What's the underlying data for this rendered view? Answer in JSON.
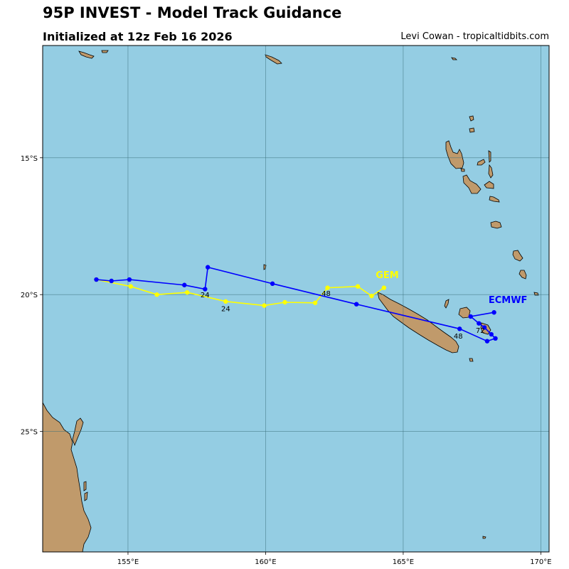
{
  "header": {
    "title": "95P INVEST - Model Track Guidance",
    "subtitle": "Initialized at 12z Feb 16 2026",
    "credit": "Levi Cowan - tropicaltidbits.com"
  },
  "map": {
    "ocean_color": "#94cde3",
    "land_color": "#c09a6b",
    "grid_color": "#3a6e7a",
    "lon_range": [
      151.9,
      170.3
    ],
    "lat_range": [
      -29.4,
      -10.9
    ],
    "lon_ticks": [
      {
        "value": 155,
        "label": "155°E"
      },
      {
        "value": 160,
        "label": "160°E"
      },
      {
        "value": 165,
        "label": "165°E"
      },
      {
        "value": 170,
        "label": "170°E"
      }
    ],
    "lat_ticks": [
      {
        "value": -15,
        "label": "15°S"
      },
      {
        "value": -20,
        "label": "20°S"
      },
      {
        "value": -25,
        "label": "25°S"
      }
    ]
  },
  "tracks": [
    {
      "name": "GEM",
      "color": "#ffff00",
      "points": [
        [
          164.3,
          -19.75
        ],
        [
          163.85,
          -20.05
        ],
        [
          163.35,
          -19.7
        ],
        [
          162.25,
          -19.75
        ],
        [
          161.8,
          -20.3
        ],
        [
          160.7,
          -20.28
        ],
        [
          159.95,
          -20.4
        ],
        [
          158.55,
          -20.25
        ],
        [
          157.15,
          -19.92
        ],
        [
          156.05,
          -20.0
        ],
        [
          155.1,
          -19.7
        ],
        [
          153.85,
          -19.45
        ]
      ],
      "hour_labels": [
        {
          "text": "48",
          "lon": 162.2,
          "lat": -20.05
        },
        {
          "text": "24",
          "lon": 158.55,
          "lat": -20.6
        }
      ],
      "name_label": {
        "lon": 164.0,
        "lat": -19.4
      }
    },
    {
      "name": "ECMWF",
      "color": "#0000ff",
      "points": [
        [
          168.3,
          -20.65
        ],
        [
          167.45,
          -20.8
        ],
        [
          167.75,
          -21.05
        ],
        [
          167.95,
          -21.2
        ],
        [
          168.2,
          -21.45
        ],
        [
          168.35,
          -21.6
        ],
        [
          168.05,
          -21.7
        ],
        [
          167.05,
          -21.25
        ],
        [
          163.3,
          -20.35
        ],
        [
          160.25,
          -19.6
        ],
        [
          157.9,
          -19.0
        ],
        [
          157.8,
          -19.8
        ],
        [
          157.05,
          -19.65
        ],
        [
          155.05,
          -19.45
        ],
        [
          154.4,
          -19.5
        ],
        [
          153.85,
          -19.45
        ]
      ],
      "hour_labels": [
        {
          "text": "72",
          "lon": 167.8,
          "lat": -21.4
        },
        {
          "text": "48",
          "lon": 167.0,
          "lat": -21.6
        },
        {
          "text": "24",
          "lon": 157.8,
          "lat": -20.1
        }
      ],
      "name_label": {
        "lon": 168.1,
        "lat": -20.3
      }
    }
  ]
}
